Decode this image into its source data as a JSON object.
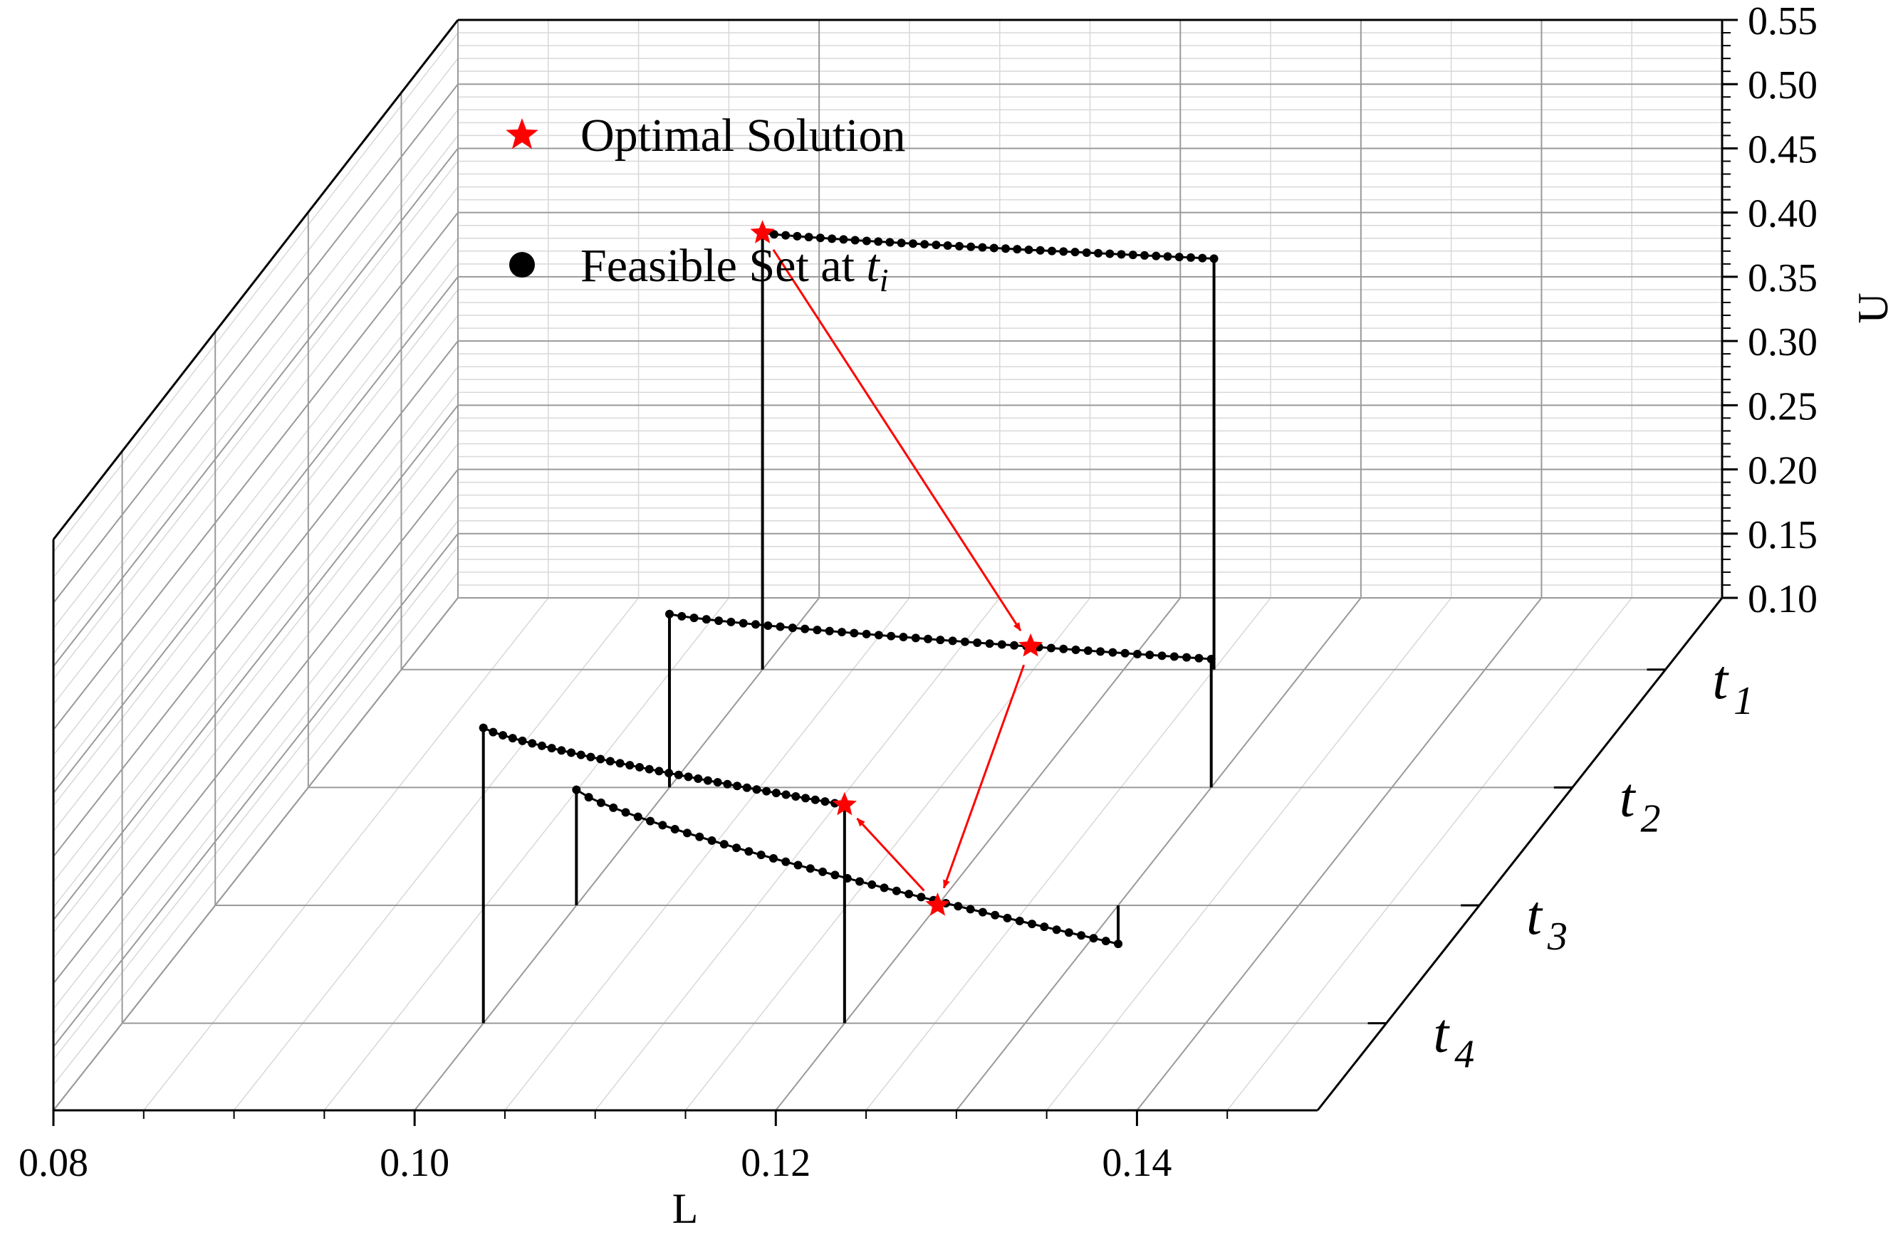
{
  "chart_data": {
    "type": "3d-line-projection",
    "x_axis": {
      "label": "L",
      "range": [
        0.08,
        0.15
      ],
      "tick_labels": [
        "0.08",
        "0.10",
        "0.12",
        "0.14"
      ],
      "tick_values": [
        0.08,
        0.1,
        0.12,
        0.14
      ]
    },
    "z_axis": {
      "label": "U",
      "range": [
        0.1,
        0.55
      ],
      "tick_labels": [
        "0.10",
        "0.15",
        "0.20",
        "0.25",
        "0.30",
        "0.35",
        "0.40",
        "0.45",
        "0.50",
        "0.55"
      ],
      "tick_values": [
        0.1,
        0.15,
        0.2,
        0.25,
        0.3,
        0.35,
        0.4,
        0.45,
        0.5,
        0.55
      ]
    },
    "y_axis": {
      "categories": [
        {
          "main": "t",
          "sub": "1"
        },
        {
          "main": "t",
          "sub": "2"
        },
        {
          "main": "t",
          "sub": "3"
        },
        {
          "main": "t",
          "sub": "4"
        }
      ]
    },
    "series": [
      {
        "name": "t1",
        "L_start": 0.1,
        "L_end": 0.125,
        "U_start": 0.44,
        "U_end": 0.42,
        "points": 40,
        "optimal": {
          "L": 0.1,
          "U": 0.44
        }
      },
      {
        "name": "t2",
        "L_start": 0.1,
        "L_end": 0.13,
        "U_start": 0.235,
        "U_end": 0.2,
        "points": 45,
        "optimal": {
          "L": 0.12,
          "U": 0.21
        }
      },
      {
        "name": "t3",
        "L_start": 0.1,
        "L_end": 0.13,
        "U_start": 0.19,
        "U_end": 0.07,
        "points": 45,
        "optimal": {
          "L": 0.12,
          "U": 0.1
        }
      },
      {
        "name": "t4",
        "L_start": 0.1,
        "L_end": 0.12,
        "U_start": 0.33,
        "U_end": 0.27,
        "points": 38,
        "optimal": {
          "L": 0.12,
          "U": 0.27
        }
      }
    ],
    "legend": {
      "optimal_label": "Optimal Solution",
      "feasible_label_main": "Feasible Set at ",
      "feasible_label_var": "t",
      "feasible_label_sub": "i"
    },
    "colors": {
      "optimal": "#ff0000",
      "feasible": "#000000",
      "grid": "#9a9a9a",
      "minor_grid": "#d8d8d8"
    }
  }
}
